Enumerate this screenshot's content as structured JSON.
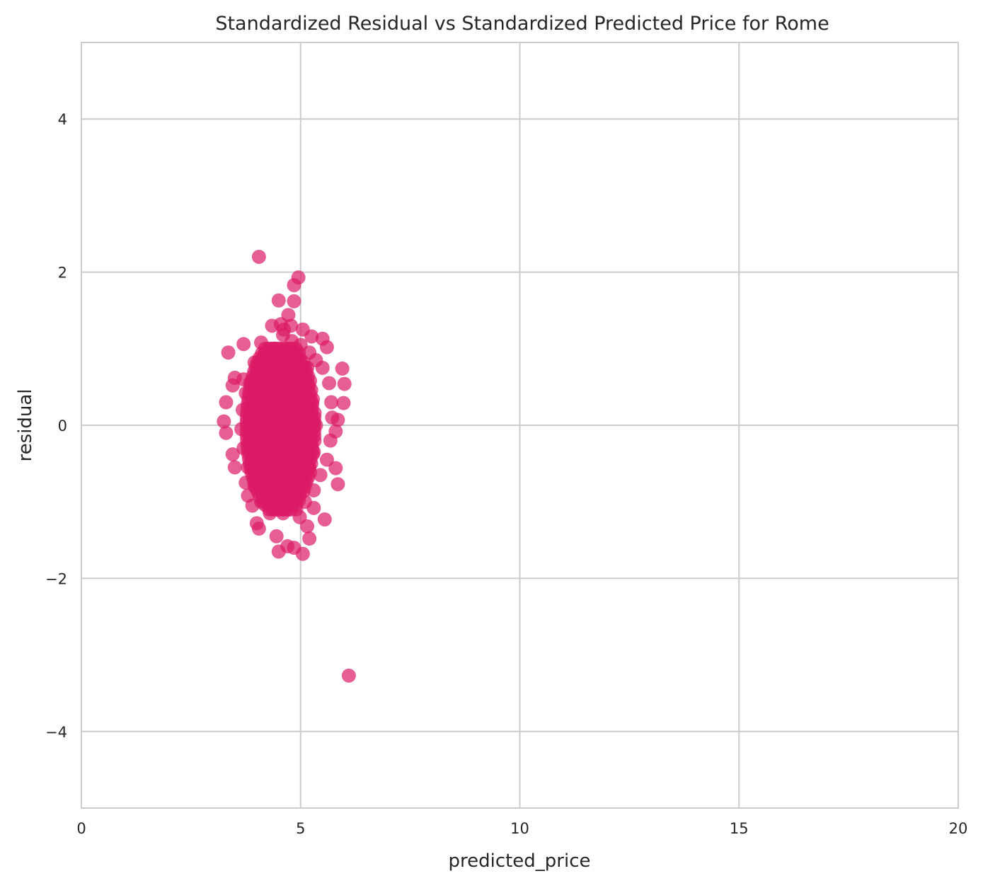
{
  "chart_data": {
    "type": "scatter",
    "title": "Standardized Residual vs Standardized Predicted Price for Rome",
    "xlabel": "predicted_price",
    "ylabel": "residual",
    "xlim": [
      0,
      20
    ],
    "ylim": [
      -5,
      5
    ],
    "xticks": [
      0,
      5,
      10,
      15,
      20
    ],
    "yticks": [
      -4,
      -2,
      0,
      2,
      4
    ],
    "xtick_labels": [
      "0",
      "5",
      "10",
      "15",
      "20"
    ],
    "ytick_labels": [
      "−4",
      "−2",
      "0",
      "2",
      "4"
    ],
    "grid": true,
    "legend": "none",
    "colors": {
      "point": "#dc1966",
      "grid": "#cccccc",
      "spine": "#cccccc",
      "text": "#262626",
      "background": "#ffffff"
    },
    "series": [
      {
        "points": [
          [
            4.05,
            2.2
          ],
          [
            4.95,
            1.93
          ],
          [
            4.85,
            1.83
          ],
          [
            4.5,
            1.63
          ],
          [
            4.85,
            1.62
          ],
          [
            4.72,
            1.44
          ],
          [
            4.55,
            1.32
          ],
          [
            4.35,
            1.3
          ],
          [
            5.05,
            1.25
          ],
          [
            5.25,
            1.16
          ],
          [
            5.5,
            1.13
          ],
          [
            5.6,
            1.02
          ],
          [
            3.7,
            1.06
          ],
          [
            3.35,
            0.95
          ],
          [
            4.1,
            1.08
          ],
          [
            5.95,
            0.74
          ],
          [
            6.0,
            0.54
          ],
          [
            5.98,
            0.29
          ],
          [
            5.85,
            0.07
          ],
          [
            5.8,
            -0.08
          ],
          [
            5.8,
            -0.56
          ],
          [
            5.85,
            -0.77
          ],
          [
            5.55,
            -1.23
          ],
          [
            5.3,
            -1.08
          ],
          [
            5.2,
            -1.48
          ],
          [
            5.05,
            -1.68
          ],
          [
            5.15,
            -1.32
          ],
          [
            4.85,
            -1.6
          ],
          [
            4.7,
            -1.58
          ],
          [
            4.5,
            -1.65
          ],
          [
            4.45,
            -1.45
          ],
          [
            4.05,
            -1.35
          ],
          [
            4.0,
            -1.28
          ],
          [
            3.9,
            -1.05
          ],
          [
            3.8,
            -0.92
          ],
          [
            3.75,
            -0.75
          ],
          [
            3.5,
            -0.55
          ],
          [
            3.45,
            -0.38
          ],
          [
            3.3,
            -0.1
          ],
          [
            3.25,
            0.05
          ],
          [
            3.3,
            0.3
          ],
          [
            3.45,
            0.52
          ],
          [
            3.5,
            0.62
          ],
          [
            3.7,
            0.6
          ],
          [
            3.95,
            0.82
          ],
          [
            4.2,
            0.95
          ],
          [
            4.4,
            1.0
          ],
          [
            4.6,
            1.18
          ],
          [
            4.8,
            1.1
          ],
          [
            5.0,
            1.05
          ],
          [
            5.2,
            0.95
          ],
          [
            5.35,
            0.85
          ],
          [
            5.5,
            0.75
          ],
          [
            5.65,
            0.55
          ],
          [
            5.7,
            0.3
          ],
          [
            5.72,
            0.1
          ],
          [
            5.68,
            -0.2
          ],
          [
            5.6,
            -0.45
          ],
          [
            5.45,
            -0.65
          ],
          [
            5.3,
            -0.85
          ],
          [
            5.1,
            -1.0
          ],
          [
            4.9,
            -1.1
          ],
          [
            4.6,
            -1.15
          ],
          [
            4.3,
            -1.15
          ],
          [
            4.1,
            -1.0
          ],
          [
            3.95,
            -0.8
          ],
          [
            3.8,
            -0.55
          ],
          [
            3.7,
            -0.3
          ],
          [
            3.65,
            -0.05
          ],
          [
            3.68,
            0.2
          ],
          [
            3.75,
            0.42
          ],
          [
            3.85,
            0.55
          ],
          [
            4.78,
            1.3
          ],
          [
            4.62,
            1.25
          ],
          [
            4.98,
            -1.2
          ],
          [
            4.4,
            0.6
          ],
          [
            4.55,
            0.5
          ],
          [
            4.7,
            0.45
          ],
          [
            4.3,
            0.35
          ],
          [
            4.85,
            0.3
          ],
          [
            4.2,
            0.15
          ],
          [
            4.5,
            0.1
          ],
          [
            4.95,
            0.05
          ],
          [
            4.1,
            -0.05
          ],
          [
            4.65,
            -0.1
          ],
          [
            5.05,
            -0.15
          ],
          [
            4.25,
            -0.25
          ],
          [
            4.75,
            -0.3
          ],
          [
            4.4,
            -0.45
          ],
          [
            4.9,
            -0.5
          ],
          [
            4.15,
            -0.6
          ],
          [
            4.6,
            -0.65
          ],
          [
            5.0,
            -0.7
          ],
          [
            4.35,
            -0.8
          ],
          [
            4.8,
            -0.85
          ],
          [
            4.5,
            -0.95
          ],
          [
            4.45,
            0.8
          ],
          [
            4.65,
            0.85
          ],
          [
            4.0,
            0.5
          ],
          [
            5.1,
            0.55
          ],
          [
            3.9,
            0.25
          ],
          [
            5.25,
            0.3
          ],
          [
            3.85,
            0.0
          ],
          [
            5.35,
            0.0
          ],
          [
            3.9,
            -0.3
          ],
          [
            5.3,
            -0.35
          ],
          [
            4.05,
            0.7
          ],
          [
            5.15,
            0.75
          ],
          [
            4.0,
            -0.5
          ],
          [
            5.2,
            -0.55
          ],
          [
            4.3,
            0.9
          ],
          [
            4.85,
            0.95
          ],
          [
            4.25,
            -0.9
          ],
          [
            4.7,
            -1.0
          ],
          [
            4.55,
            0.25
          ],
          [
            4.45,
            -0.2
          ],
          [
            4.6,
            0.0
          ],
          [
            4.4,
            0.05
          ],
          [
            4.75,
            0.15
          ],
          [
            4.35,
            -0.1
          ],
          [
            4.9,
            -0.25
          ],
          [
            4.2,
            0.45
          ],
          [
            5.0,
            0.4
          ],
          [
            4.15,
            -0.35
          ],
          [
            5.05,
            -0.4
          ],
          [
            6.1,
            -3.27
          ]
        ]
      }
    ]
  }
}
